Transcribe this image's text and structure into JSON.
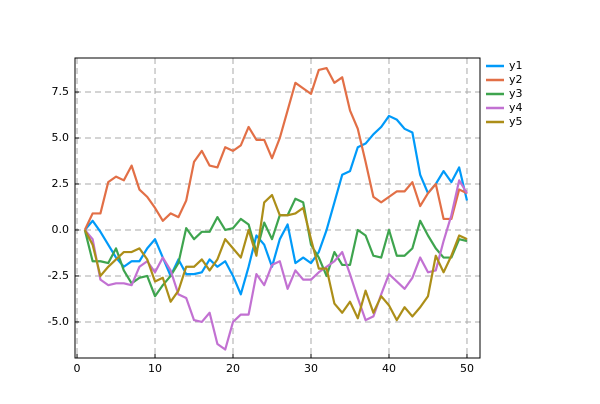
{
  "chart_data": {
    "type": "line",
    "x": [
      1,
      2,
      3,
      4,
      5,
      6,
      7,
      8,
      9,
      10,
      11,
      12,
      13,
      14,
      15,
      16,
      17,
      18,
      19,
      20,
      21,
      22,
      23,
      24,
      25,
      26,
      27,
      28,
      29,
      30,
      31,
      32,
      33,
      34,
      35,
      36,
      37,
      38,
      39,
      40,
      41,
      42,
      43,
      44,
      45,
      46,
      47,
      48,
      49,
      50
    ],
    "series": [
      {
        "name": "y1",
        "color": "#009af9",
        "values": [
          0,
          0.5,
          -0.1,
          -0.8,
          -1.5,
          -2.0,
          -1.7,
          -1.7,
          -1.0,
          -0.5,
          -1.5,
          -2.5,
          -1.6,
          -2.4,
          -2.4,
          -2.3,
          -1.6,
          -2.0,
          -1.7,
          -2.5,
          -3.5,
          -2.0,
          -0.3,
          -0.8,
          -2.0,
          -0.5,
          0.3,
          -1.8,
          -1.5,
          -1.8,
          -1.2,
          0,
          1.5,
          3.0,
          3.2,
          4.5,
          4.7,
          5.2,
          5.6,
          6.2,
          6.0,
          5.5,
          5.3,
          3.0,
          2.0,
          2.5,
          3.2,
          2.6,
          3.4,
          1.6
        ]
      },
      {
        "name": "y2",
        "color": "#e26f46",
        "values": [
          0,
          0.9,
          0.9,
          2.6,
          2.9,
          2.7,
          3.5,
          2.2,
          1.8,
          1.2,
          0.5,
          0.9,
          0.7,
          1.6,
          3.7,
          4.3,
          3.5,
          3.4,
          4.5,
          4.3,
          4.6,
          5.6,
          4.9,
          4.9,
          3.9,
          5.0,
          6.5,
          8.0,
          7.7,
          7.4,
          8.7,
          8.8,
          8.0,
          8.3,
          6.5,
          5.5,
          3.7,
          1.8,
          1.5,
          1.8,
          2.1,
          2.1,
          2.6,
          1.3,
          2.0,
          2.5,
          0.6,
          0.6,
          2.2,
          2.0
        ]
      },
      {
        "name": "y3",
        "color": "#3ea44e",
        "values": [
          0,
          -1.7,
          -1.7,
          -1.8,
          -1.0,
          -2.2,
          -2.9,
          -2.6,
          -2.5,
          -3.6,
          -3.0,
          -2.5,
          -1.8,
          0.1,
          -0.5,
          -0.1,
          -0.1,
          0.7,
          0,
          0.1,
          0.6,
          0.3,
          -1.2,
          0.4,
          -0.5,
          0.8,
          0.8,
          1.7,
          1.5,
          -0.8,
          -1.5,
          -2.5,
          -1.2,
          -1.9,
          -1.9,
          0,
          -0.3,
          -1.4,
          -1.5,
          0,
          -1.4,
          -1.4,
          -1.0,
          0.5,
          -0.3,
          -1.0,
          -1.5,
          -1.5,
          -0.5,
          -0.6
        ]
      },
      {
        "name": "y4",
        "color": "#c271d2",
        "values": [
          0,
          -0.5,
          -2.7,
          -3.0,
          -2.9,
          -2.9,
          -3.0,
          -2.0,
          -1.7,
          -2.3,
          -1.5,
          -2.2,
          -3.5,
          -3.7,
          -4.9,
          -5.0,
          -4.5,
          -6.2,
          -6.5,
          -5.0,
          -4.6,
          -4.6,
          -2.4,
          -3.0,
          -1.9,
          -1.7,
          -3.2,
          -2.2,
          -2.7,
          -2.7,
          -2.3,
          -2.0,
          -1.7,
          -1.2,
          -2.4,
          -3.7,
          -4.9,
          -4.7,
          -3.5,
          -2.4,
          -2.8,
          -3.2,
          -2.6,
          -1.5,
          -2.3,
          -2.2,
          -0.6,
          0.8,
          2.7,
          2.0
        ]
      },
      {
        "name": "y5",
        "color": "#ac8e18",
        "values": [
          0,
          -0.8,
          -2.5,
          -2.0,
          -1.6,
          -1.2,
          -1.2,
          -1.0,
          -1.6,
          -2.8,
          -2.6,
          -3.9,
          -3.3,
          -2.0,
          -2.0,
          -1.6,
          -2.2,
          -1.6,
          -0.5,
          -1.0,
          -1.5,
          0,
          -1.4,
          1.5,
          1.9,
          0.8,
          0.8,
          0.9,
          1.2,
          -0.5,
          -2.1,
          -2.1,
          -4.0,
          -4.5,
          -3.9,
          -4.8,
          -3.3,
          -4.5,
          -3.6,
          -4.1,
          -4.9,
          -4.2,
          -4.7,
          -4.2,
          -3.6,
          -1.4,
          -2.3,
          -1.4,
          -0.3,
          -0.5
        ]
      }
    ],
    "xlim": [
      -0.26,
      51.67
    ],
    "xticks": [
      0,
      10,
      20,
      30,
      40,
      50
    ],
    "ylim": [
      -6.96,
      9.35
    ],
    "yticks": [
      {
        "value": -5,
        "label": "-5.0"
      },
      -2.5,
      {
        "value": 0,
        "label": "0.0"
      },
      2.5,
      {
        "value": 5,
        "label": "5.0"
      },
      7.5
    ],
    "grid": true,
    "legend": "outside-right"
  }
}
